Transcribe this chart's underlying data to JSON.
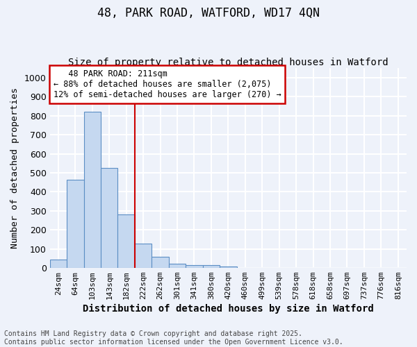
{
  "title1": "48, PARK ROAD, WATFORD, WD17 4QN",
  "title2": "Size of property relative to detached houses in Watford",
  "xlabel": "Distribution of detached houses by size in Watford",
  "ylabel": "Number of detached properties",
  "bar_labels": [
    "24sqm",
    "64sqm",
    "103sqm",
    "143sqm",
    "182sqm",
    "222sqm",
    "262sqm",
    "301sqm",
    "341sqm",
    "380sqm",
    "420sqm",
    "460sqm",
    "499sqm",
    "539sqm",
    "578sqm",
    "618sqm",
    "658sqm",
    "697sqm",
    "737sqm",
    "776sqm",
    "816sqm"
  ],
  "bar_values": [
    45,
    465,
    820,
    525,
    280,
    128,
    60,
    23,
    15,
    13,
    7,
    0,
    0,
    0,
    0,
    0,
    0,
    0,
    0,
    0,
    0
  ],
  "bar_color": "#c5d8f0",
  "bar_edge_color": "#5b8ec4",
  "property_line_label": "48 PARK ROAD: 211sqm",
  "annotation_line1": "← 88% of detached houses are smaller (2,075)",
  "annotation_line2": "12% of semi-detached houses are larger (270) →",
  "annotation_box_color": "white",
  "annotation_box_edge": "#cc0000",
  "vline_color": "#cc0000",
  "ylim": [
    0,
    1050
  ],
  "yticks": [
    0,
    100,
    200,
    300,
    400,
    500,
    600,
    700,
    800,
    900,
    1000
  ],
  "footer_line1": "Contains HM Land Registry data © Crown copyright and database right 2025.",
  "footer_line2": "Contains public sector information licensed under the Open Government Licence v3.0.",
  "bg_color": "#eef2fa",
  "grid_color": "white",
  "title_fontsize": 12,
  "subtitle_fontsize": 10,
  "axis_label_fontsize": 10,
  "tick_fontsize": 8,
  "annotation_fontsize": 8.5,
  "footer_fontsize": 7.0
}
